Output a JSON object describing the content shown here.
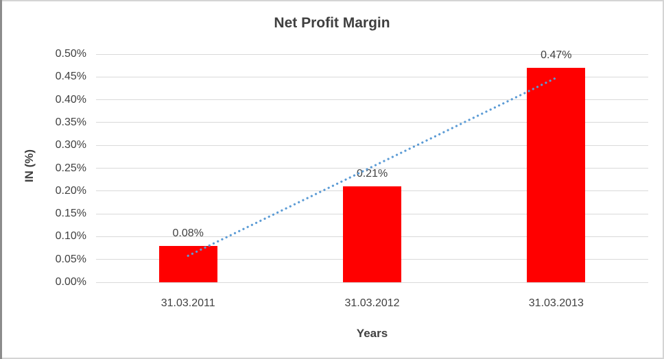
{
  "chart_data": {
    "type": "bar",
    "title": "Net Profit Margin",
    "categories": [
      "31.03.2011",
      "31.03.2012",
      "31.03.2013"
    ],
    "values": [
      0.08,
      0.21,
      0.47
    ],
    "data_labels": [
      "0.08%",
      "0.21%",
      "0.47%"
    ],
    "xlabel": "Years",
    "ylabel": "IN (%)",
    "ylim": [
      0,
      0.5
    ],
    "ytick_step": 0.05,
    "ytick_labels_top_to_bottom": [
      "0.50%",
      "0.45%",
      "0.40%",
      "0.35%",
      "0.30%",
      "0.25%",
      "0.20%",
      "0.15%",
      "0.10%",
      "0.05%",
      "0.00%"
    ],
    "grid": true,
    "legend_position": "none",
    "bar_color": "#FF0000",
    "trendline": {
      "type": "linear",
      "style": "dotted",
      "color": "#5B9BD5",
      "endpoint_values": [
        0.058,
        0.448
      ]
    }
  },
  "colors": {
    "text": "#404040",
    "gridline": "#D9D9D9",
    "background": "#FFFFFF"
  }
}
